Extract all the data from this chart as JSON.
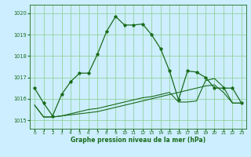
{
  "bg_color": "#cceeff",
  "grid_color": "#88cc88",
  "line_color": "#1a6b1a",
  "xlabel": "Graphe pression niveau de la mer (hPa)",
  "ylim": [
    1014.6,
    1020.4
  ],
  "xlim": [
    -0.5,
    23.5
  ],
  "yticks": [
    1015,
    1016,
    1017,
    1018,
    1019,
    1020
  ],
  "xticks": [
    0,
    1,
    2,
    3,
    4,
    5,
    6,
    7,
    8,
    9,
    10,
    11,
    12,
    13,
    14,
    15,
    16,
    17,
    18,
    19,
    20,
    21,
    22,
    23
  ],
  "line1_x": [
    0,
    1,
    2,
    3,
    4,
    5,
    6,
    7,
    8,
    9,
    10,
    11,
    12,
    13,
    14,
    15,
    16,
    17,
    18,
    19,
    20,
    21,
    22,
    23
  ],
  "line1_y": [
    1016.5,
    1015.8,
    1015.2,
    1016.2,
    1016.8,
    1017.2,
    1017.2,
    1018.1,
    1019.15,
    1019.85,
    1019.45,
    1019.45,
    1019.5,
    1019.0,
    1018.35,
    1017.3,
    1015.95,
    1017.3,
    1017.25,
    1017.0,
    1016.5,
    1016.5,
    1016.5,
    1015.8
  ],
  "line2_x": [
    0,
    1,
    2,
    3,
    4,
    5,
    6,
    7,
    8,
    9,
    10,
    11,
    12,
    13,
    14,
    15,
    16,
    17,
    18,
    19,
    20,
    21,
    22,
    23
  ],
  "line2_y": [
    1015.7,
    1015.15,
    1015.15,
    1015.2,
    1015.3,
    1015.4,
    1015.5,
    1015.55,
    1015.65,
    1015.75,
    1015.85,
    1015.95,
    1016.05,
    1016.1,
    1016.2,
    1016.3,
    1015.85,
    1015.85,
    1015.9,
    1016.85,
    1016.95,
    1016.55,
    1015.8,
    1015.8
  ],
  "line3_x": [
    0,
    1,
    2,
    3,
    4,
    5,
    6,
    7,
    8,
    9,
    10,
    11,
    12,
    13,
    14,
    15,
    16,
    17,
    18,
    19,
    20,
    21,
    22,
    23
  ],
  "line3_y": [
    1015.7,
    1015.15,
    1015.15,
    1015.2,
    1015.25,
    1015.3,
    1015.35,
    1015.4,
    1015.5,
    1015.6,
    1015.7,
    1015.8,
    1015.9,
    1016.0,
    1016.1,
    1016.2,
    1016.3,
    1016.4,
    1016.5,
    1016.6,
    1016.65,
    1016.3,
    1015.8,
    1015.8
  ]
}
